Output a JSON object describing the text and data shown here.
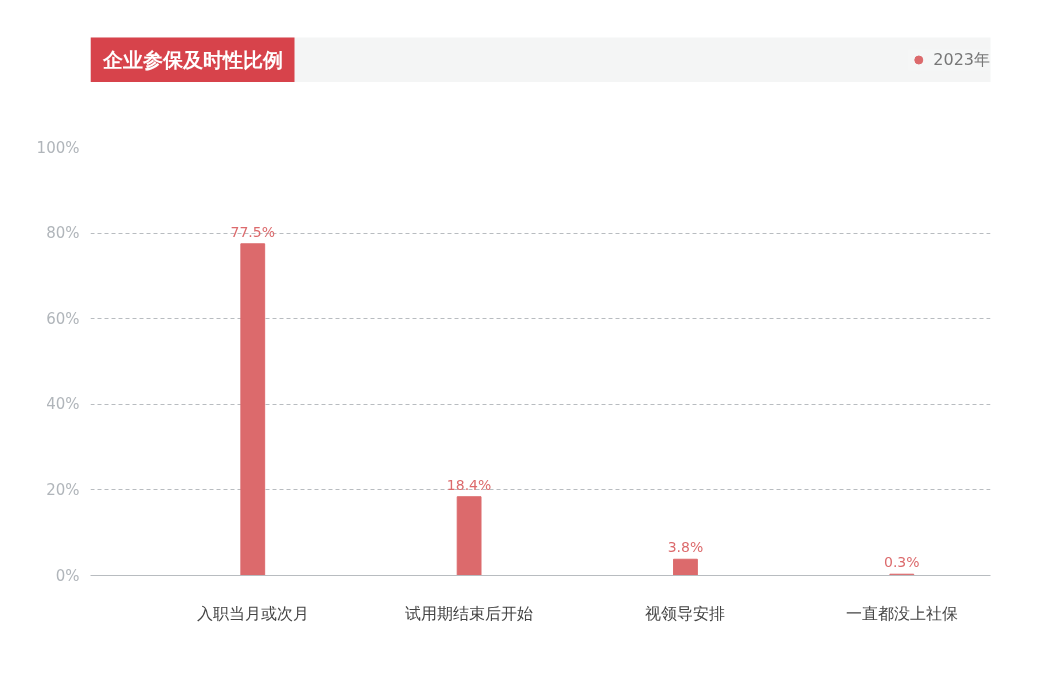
{
  "chart_data": {
    "type": "bar",
    "title": "企业参保及时性比例",
    "categories": [
      "入职当月或次月",
      "试用期结束后开始",
      "视领导安排",
      "一直都没上社保"
    ],
    "series": [
      {
        "name": "2023年",
        "color": "#dc6a6c",
        "values": [
          77.5,
          18.4,
          3.8,
          0.3
        ],
        "value_labels": [
          "77.5%",
          "18.4%",
          "3.8%",
          "0.3%"
        ]
      }
    ],
    "ylim": [
      0,
      100
    ],
    "yticks": [
      {
        "value": 0,
        "label": "0%"
      },
      {
        "value": 20,
        "label": "20%"
      },
      {
        "value": 40,
        "label": "40%"
      },
      {
        "value": 60,
        "label": "60%"
      },
      {
        "value": 80,
        "label": "80%"
      },
      {
        "value": 100,
        "label": "100%"
      }
    ],
    "grid": "y",
    "legend": "top right",
    "data_labels": true
  }
}
